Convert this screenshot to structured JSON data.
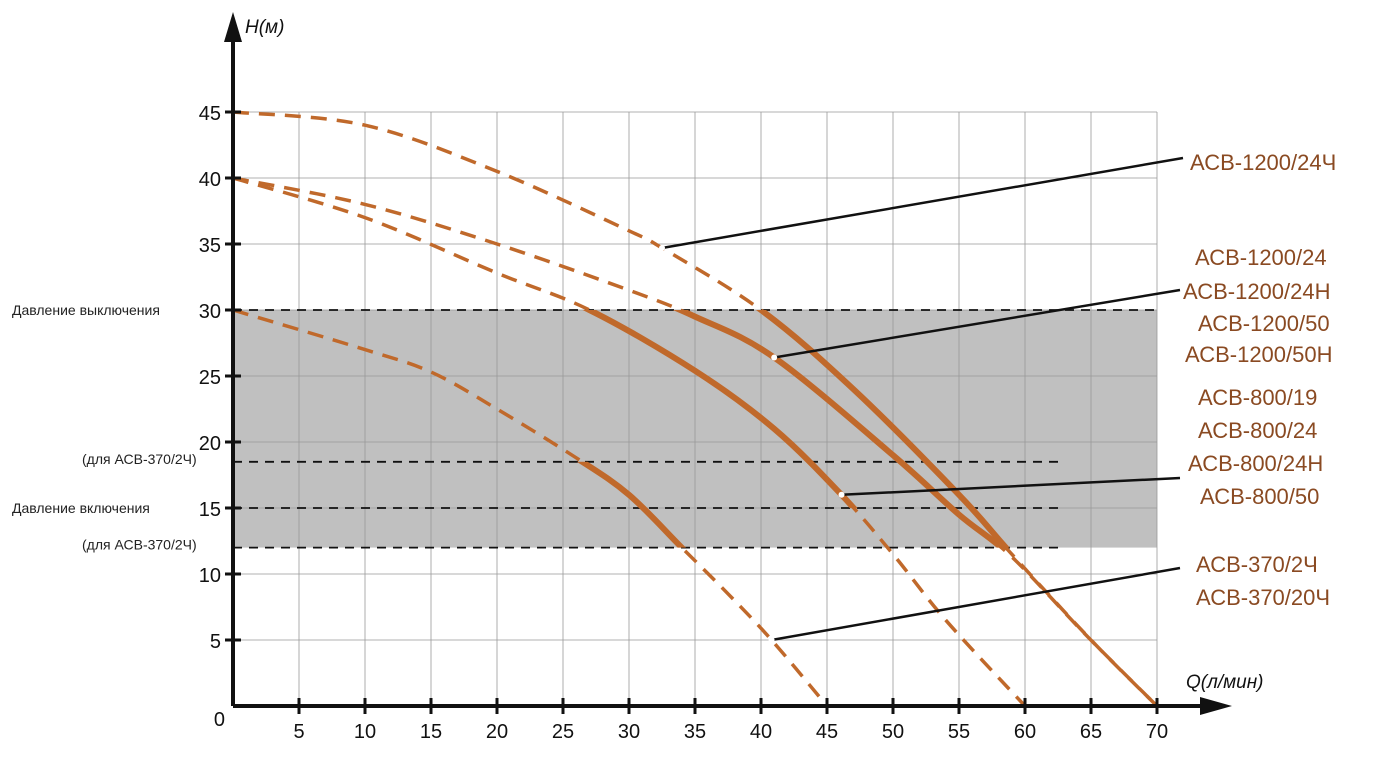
{
  "chart_data": {
    "type": "line",
    "xlabel": "Q(л/мин)",
    "ylabel": "H(м)",
    "xlim": [
      0,
      70
    ],
    "ylim": [
      0,
      45
    ],
    "x_ticks": [
      0,
      5,
      10,
      15,
      20,
      25,
      30,
      35,
      40,
      45,
      50,
      55,
      60,
      65,
      70
    ],
    "y_ticks": [
      5,
      10,
      15,
      20,
      25,
      30,
      35,
      40,
      45
    ],
    "origin_label": "0",
    "grid": true,
    "colors": {
      "curve": "#c0692b",
      "label": "#8a4a22",
      "band": "#c0c0c0"
    },
    "band": {
      "y_from": 12,
      "y_to": 30,
      "x_to": 70
    },
    "reference_lines": [
      {
        "y": 30,
        "label": "Давление выключения"
      },
      {
        "y": 18.5,
        "label": "(для АСВ-370/2Ч)"
      },
      {
        "y": 15,
        "label": "Давление включения"
      },
      {
        "y": 12,
        "label": "(для АСВ-370/2Ч)"
      }
    ],
    "series": [
      {
        "labels": [
          "АСВ-1200/24Ч"
        ],
        "solid_range": [
          12,
          30
        ],
        "points": [
          [
            0,
            45
          ],
          [
            10,
            44
          ],
          [
            20,
            40.5
          ],
          [
            30,
            36
          ],
          [
            32.5,
            34.7
          ],
          [
            40,
            30
          ],
          [
            47,
            24
          ],
          [
            55,
            16
          ],
          [
            59,
            11.5
          ],
          [
            65,
            5
          ],
          [
            70,
            0
          ]
        ],
        "marker": [
          32.5,
          34.7
        ]
      },
      {
        "labels": [
          "АСВ-1200/24",
          "АСВ-1200/24Н",
          "АСВ-1200/50",
          "АСВ-1200/50Н"
        ],
        "solid_range": [
          12,
          30
        ],
        "points": [
          [
            0,
            40
          ],
          [
            10,
            38
          ],
          [
            20,
            35
          ],
          [
            30,
            31.5
          ],
          [
            35,
            29.5
          ],
          [
            41,
            26.4
          ],
          [
            50,
            19
          ],
          [
            55,
            14.5
          ],
          [
            59,
            11.3
          ],
          [
            64.5,
            5.5
          ],
          [
            70,
            0
          ]
        ],
        "marker": [
          41,
          26.4
        ]
      },
      {
        "labels": [
          "АСВ-800/19",
          "АСВ-800/24",
          "АСВ-800/24Н",
          "АСВ-800/50"
        ],
        "solid_range": [
          15,
          30
        ],
        "points": [
          [
            0,
            40
          ],
          [
            10,
            37
          ],
          [
            20,
            32.8
          ],
          [
            27,
            30
          ],
          [
            35,
            25.4
          ],
          [
            41,
            21
          ],
          [
            46.1,
            16
          ],
          [
            50,
            11.5
          ],
          [
            54,
            6.5
          ],
          [
            60,
            0
          ]
        ],
        "marker": [
          46.1,
          16
        ]
      },
      {
        "labels": [
          "АСВ-370/2Ч",
          "АСВ-370/20Ч"
        ],
        "solid_range": [
          12,
          18.5
        ],
        "points": [
          [
            0,
            30
          ],
          [
            10,
            27
          ],
          [
            15,
            25.3
          ],
          [
            20,
            22.5
          ],
          [
            26,
            18.8
          ],
          [
            30,
            16
          ],
          [
            34,
            12
          ],
          [
            37.5,
            8.5
          ],
          [
            40.8,
            5
          ],
          [
            45,
            0
          ]
        ],
        "marker": [
          40.8,
          5
        ]
      }
    ]
  }
}
